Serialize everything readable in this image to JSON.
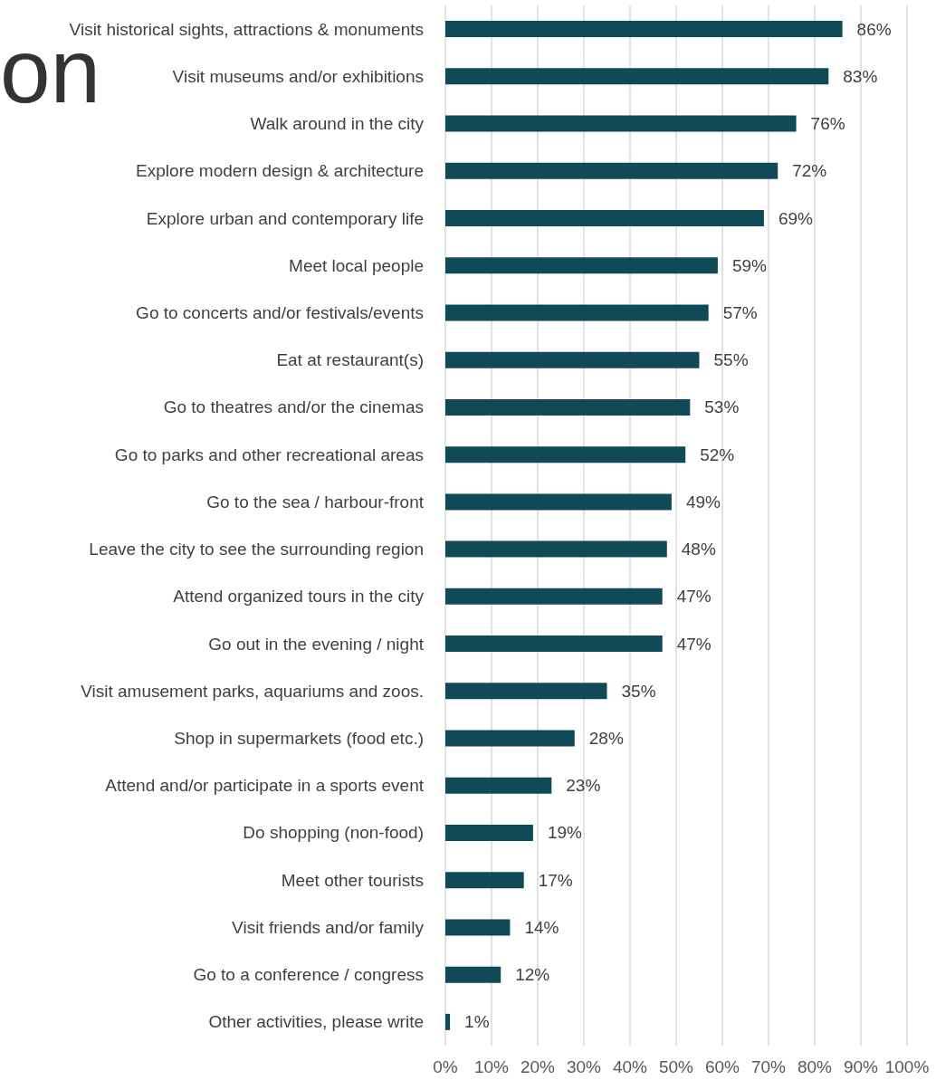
{
  "chart_data": {
    "type": "bar",
    "orientation": "horizontal",
    "categories": [
      "Visit historical sights, attractions & monuments",
      "Visit museums and/or exhibitions",
      "Walk around in the city",
      "Explore modern design & architecture",
      "Explore urban and contemporary life",
      "Meet local people",
      "Go to concerts and/or festivals/events",
      "Eat at restaurant(s)",
      "Go to theatres and/or the cinemas",
      "Go to parks and other recreational areas",
      "Go to the sea / harbour-front",
      "Leave the city to see the surrounding region",
      "Attend organized tours in the city",
      "Go out in the evening / night",
      "Visit amusement parks, aquariums and zoos.",
      "Shop in supermarkets (food etc.)",
      "Attend and/or participate in a sports event",
      "Do shopping (non-food)",
      "Meet other tourists",
      "Visit friends and/or family",
      "Go to a conference / congress",
      "Other activities, please write"
    ],
    "values": [
      86,
      83,
      76,
      72,
      69,
      59,
      57,
      55,
      53,
      52,
      49,
      48,
      47,
      47,
      35,
      28,
      23,
      19,
      17,
      14,
      12,
      1
    ],
    "value_labels": [
      "86%",
      "83%",
      "76%",
      "72%",
      "69%",
      "59%",
      "57%",
      "55%",
      "53%",
      "52%",
      "49%",
      "48%",
      "47%",
      "47%",
      "35%",
      "28%",
      "23%",
      "19%",
      "17%",
      "14%",
      "12%",
      "1%"
    ],
    "color": "#0f4a56",
    "xlim": [
      0,
      100
    ],
    "xticks": [
      {
        "value": 0,
        "label": "0%"
      },
      {
        "value": 10,
        "label": "10%"
      },
      {
        "value": 20,
        "label": "20%"
      },
      {
        "value": 30,
        "label": "30%"
      },
      {
        "value": 40,
        "label": "40%"
      },
      {
        "value": 50,
        "label": "50%"
      },
      {
        "value": 60,
        "label": "60%"
      },
      {
        "value": 70,
        "label": "70%"
      },
      {
        "value": 80,
        "label": "80%"
      },
      {
        "value": 90,
        "label": "90%"
      },
      {
        "value": 100,
        "label": "100%"
      }
    ],
    "grid": "x",
    "annotations": [
      "on"
    ]
  }
}
